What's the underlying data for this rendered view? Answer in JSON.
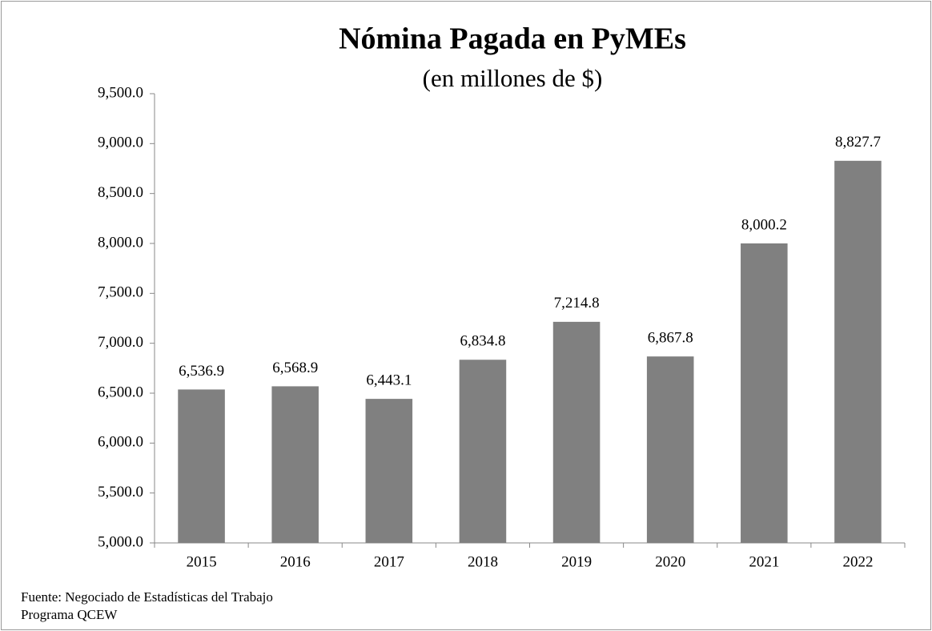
{
  "chart_data": {
    "type": "bar",
    "title": "Nómina Pagada en PyMEs",
    "subtitle": "(en millones de $)",
    "categories": [
      "2015",
      "2016",
      "2017",
      "2018",
      "2019",
      "2020",
      "2021",
      "2022"
    ],
    "values": [
      6536.9,
      6568.9,
      6443.1,
      6834.8,
      7214.8,
      6867.8,
      8000.2,
      8827.7
    ],
    "value_labels": [
      "6,536.9",
      "6,568.9",
      "6,443.1",
      "6,834.8",
      "7,214.8",
      "6,867.8",
      "8,000.2",
      "8,827.7"
    ],
    "color": "#808080",
    "ylim": [
      5000,
      9500
    ],
    "yticks": [
      {
        "value": 5000,
        "label": "5,000.0"
      },
      {
        "value": 5500,
        "label": "5,500.0"
      },
      {
        "value": 6000,
        "label": "6,000.0"
      },
      {
        "value": 6500,
        "label": "6,500.0"
      },
      {
        "value": 7000,
        "label": "7,000.0"
      },
      {
        "value": 7500,
        "label": "7,500.0"
      },
      {
        "value": 8000,
        "label": "8,000.0"
      },
      {
        "value": 8500,
        "label": "8,500.0"
      },
      {
        "value": 9000,
        "label": "9,000.0"
      },
      {
        "value": 9500,
        "label": "9,500.0"
      }
    ],
    "grid": false,
    "source": [
      "Fuente: Negociado de Estadísticas del Trabajo",
      "Programa QCEW"
    ]
  }
}
